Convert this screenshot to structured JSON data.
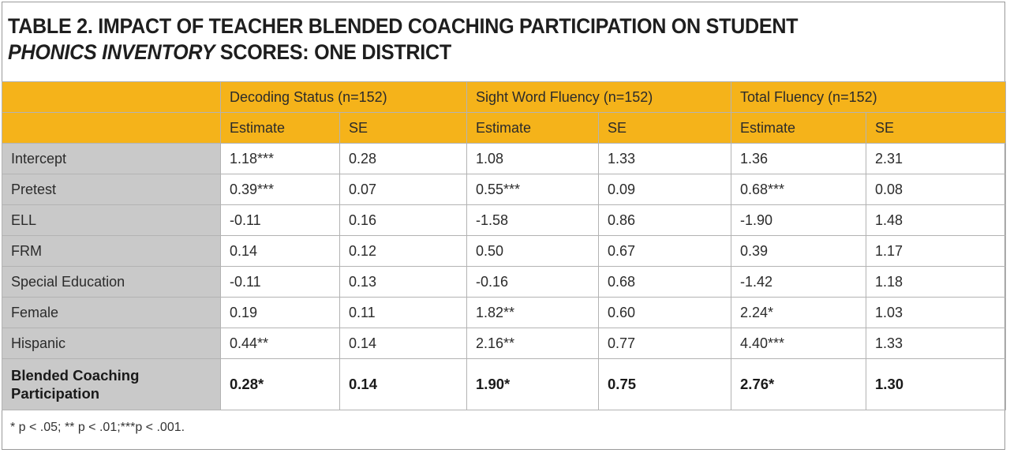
{
  "title": {
    "line1": "TABLE 2. IMPACT OF TEACHER BLENDED COACHING PARTICIPATION ON STUDENT",
    "line2_italic": "PHONICS INVENTORY",
    "line2_rest": " SCORES: ONE DISTRICT"
  },
  "groups": [
    "Decoding Status (n=152)",
    "Sight Word Fluency (n=152)",
    "Total Fluency (n=152)"
  ],
  "subheaders": [
    "Estimate",
    "SE",
    "Estimate",
    "SE",
    "Estimate",
    "SE"
  ],
  "rows": [
    {
      "label": "Intercept",
      "cells": [
        "1.18***",
        "0.28",
        "1.08",
        "1.33",
        "1.36",
        "2.31"
      ]
    },
    {
      "label": "Pretest",
      "cells": [
        "0.39***",
        "0.07",
        "0.55***",
        "0.09",
        "0.68***",
        "0.08"
      ]
    },
    {
      "label": "ELL",
      "cells": [
        "-0.11",
        "0.16",
        "-1.58",
        "0.86",
        "-1.90",
        "1.48"
      ]
    },
    {
      "label": "FRM",
      "cells": [
        "0.14",
        "0.12",
        "0.50",
        "0.67",
        "0.39",
        "1.17"
      ]
    },
    {
      "label": "Special Education",
      "cells": [
        "-0.11",
        "0.13",
        "-0.16",
        "0.68",
        "-1.42",
        "1.18"
      ]
    },
    {
      "label": "Female",
      "cells": [
        "0.19",
        "0.11",
        "1.82**",
        "0.60",
        "2.24*",
        "1.03"
      ]
    },
    {
      "label": "Hispanic",
      "cells": [
        "0.44**",
        "0.14",
        "2.16**",
        "0.77",
        "4.40***",
        "1.33"
      ]
    },
    {
      "label": "Blended Coaching Participation",
      "cells": [
        "0.28*",
        "0.14",
        "1.90*",
        "0.75",
        "2.76*",
        "1.30"
      ]
    }
  ],
  "footnote": "* p < .05; ** p < .01;***p < .001.",
  "colors": {
    "header": "#f5b31a",
    "label_column": "#c9c9c9"
  }
}
